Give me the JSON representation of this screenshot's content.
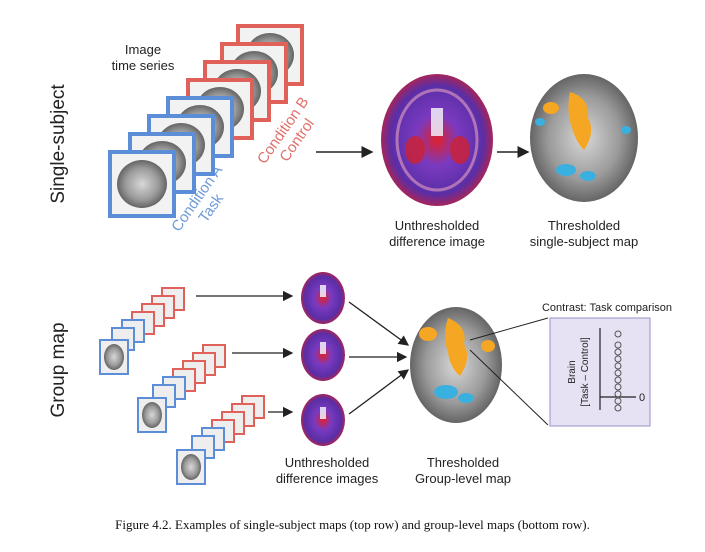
{
  "rows": {
    "single_subject": "Single-subject",
    "group_map": "Group map"
  },
  "time_series": {
    "line1": "Image",
    "line2": "time series"
  },
  "conditions": {
    "a_line1": "Condition A",
    "a_line2": "Task",
    "b_line1": "Condition B",
    "b_line2": "Control"
  },
  "top_labels": {
    "unthresholded_line1": "Unthresholded",
    "unthresholded_line2": "difference image",
    "thresholded_line1": "Thresholded",
    "thresholded_line2": "single-subject map"
  },
  "bottom_labels": {
    "unthresholded_line1": "Unthresholded",
    "unthresholded_line2": "difference images",
    "thresholded_line1": "Thresholded",
    "thresholded_line2": "Group-level map"
  },
  "contrast": {
    "title": "Contrast: Task comparison",
    "ylabel_line1": "Brain",
    "ylabel_line2": "[Task – Control]",
    "zero": "0"
  },
  "caption": "Figure 4.2. Examples of single-subject maps (top row) and group-level maps (bottom row).",
  "colors": {
    "task_blue": "#5b8ed6",
    "control_red": "#e0605a",
    "activation_orange": "#f5a623",
    "deactivation_cyan": "#3ab0e0",
    "difference_purple": "#5a2ea6",
    "difference_red": "#e0202a",
    "panel_fill": "#e6e1f3"
  }
}
